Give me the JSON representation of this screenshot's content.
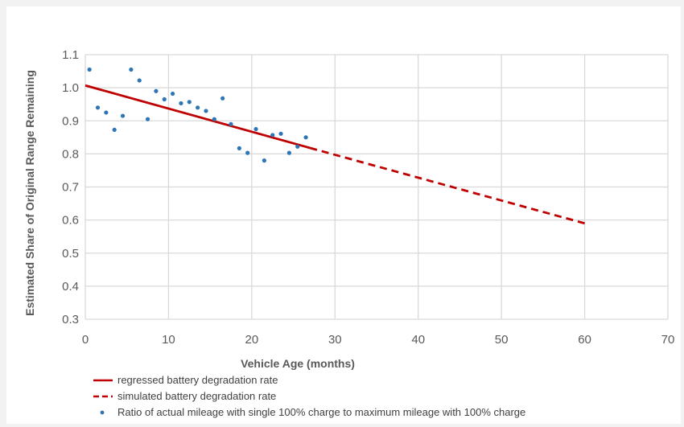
{
  "chart_data": {
    "type": "scatter",
    "xlabel": "Vehicle Age (months)",
    "ylabel": "Estimated Share of Original Range Remaining",
    "xlim": [
      0,
      70
    ],
    "ylim": [
      0.3,
      1.1
    ],
    "x_ticks": [
      0,
      10,
      20,
      30,
      40,
      50,
      60,
      70
    ],
    "y_ticks": [
      "0.3",
      "0.4",
      "0.5",
      "0.6",
      "0.7",
      "0.8",
      "0.9",
      "1.0",
      "1.1"
    ],
    "grid": true,
    "legend_position": "bottom",
    "series": [
      {
        "name": "regressed battery degradation rate",
        "kind": "line",
        "style": "solid",
        "color": "#c00000",
        "x": [
          0,
          27
        ],
        "y": [
          1.007,
          0.818
        ]
      },
      {
        "name": "simulated battery degradation rate",
        "kind": "line",
        "style": "dashed",
        "color": "#c00000",
        "x": [
          27,
          60
        ],
        "y": [
          0.818,
          0.59
        ]
      },
      {
        "name": "Ratio of actual mileage with single 100% charge to maximum mileage with 100% charge",
        "kind": "scatter",
        "color": "#2e75b6",
        "x": [
          0.5,
          1.5,
          2.5,
          3.5,
          4.5,
          5.5,
          6.5,
          7.5,
          8.5,
          9.5,
          10.5,
          11.5,
          12.5,
          13.5,
          14.5,
          15.5,
          16.5,
          17.5,
          18.5,
          19.5,
          20.5,
          21.5,
          22.5,
          23.5,
          24.5,
          25.5,
          26.5
        ],
        "y": [
          1.055,
          0.94,
          0.925,
          0.873,
          0.915,
          1.055,
          1.022,
          0.905,
          0.99,
          0.965,
          0.982,
          0.953,
          0.957,
          0.94,
          0.93,
          0.905,
          0.968,
          0.89,
          0.817,
          0.803,
          0.875,
          0.78,
          0.857,
          0.861,
          0.803,
          0.822,
          0.85
        ]
      }
    ]
  }
}
